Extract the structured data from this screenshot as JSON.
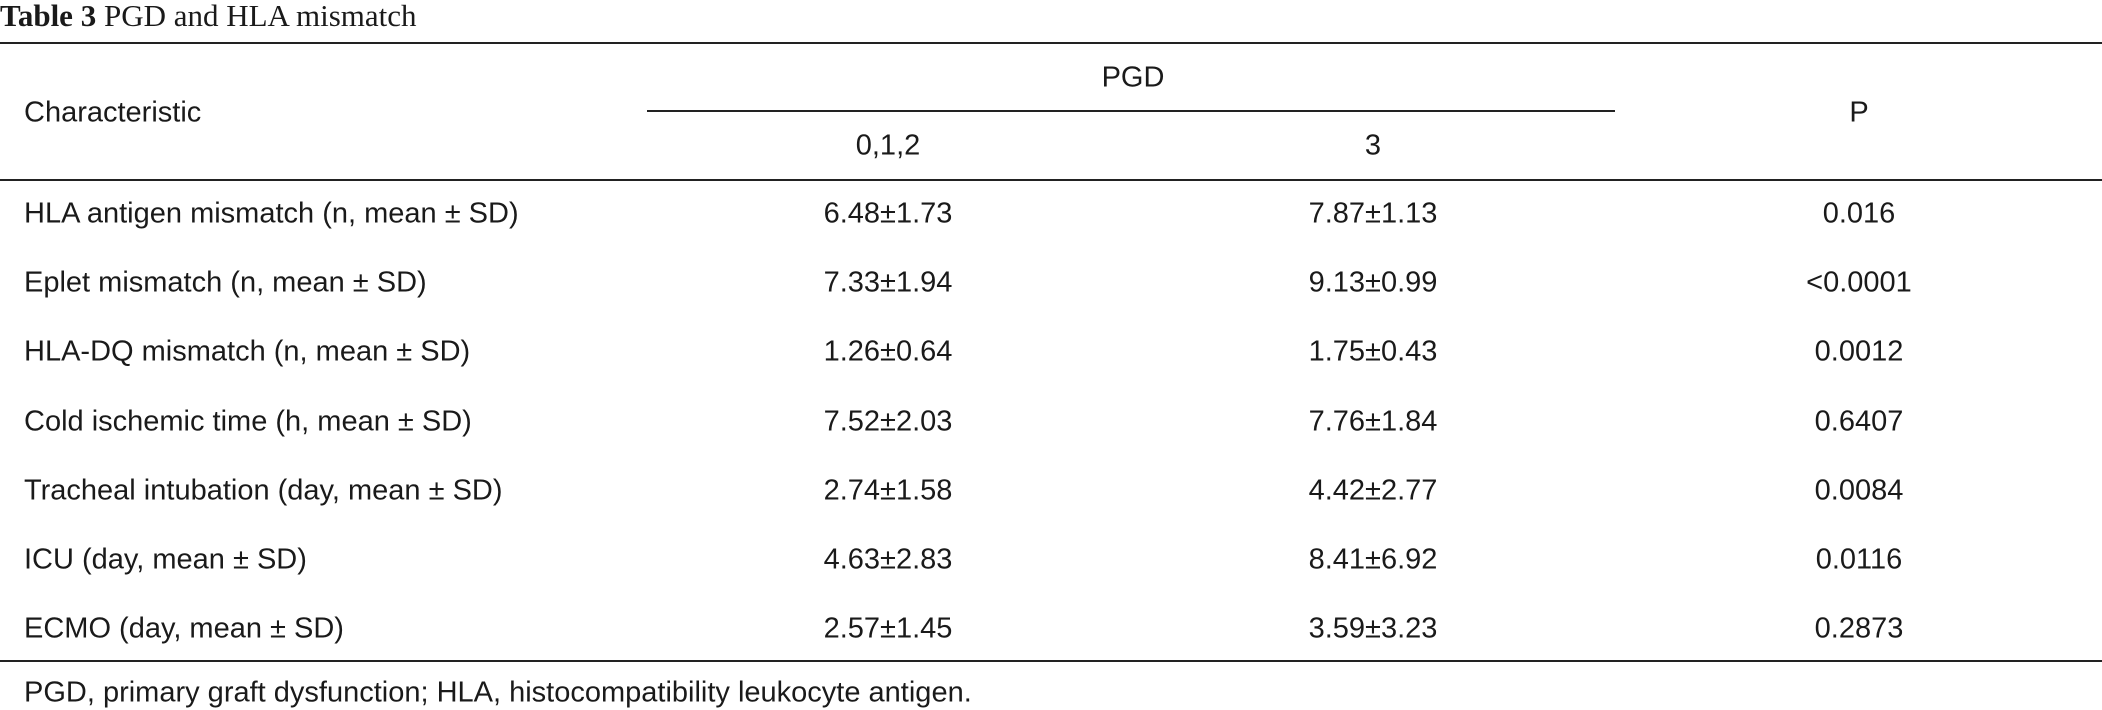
{
  "title": {
    "label": "Table 3",
    "text": "PGD and HLA mismatch"
  },
  "table": {
    "header": {
      "characteristic": "Characteristic",
      "group": "PGD",
      "subgroups": [
        "0,1,2",
        "3"
      ],
      "p": "P"
    },
    "rows": [
      [
        "HLA antigen mismatch (n, mean ± SD)",
        "6.48±1.73",
        "7.87±1.13",
        "0.016"
      ],
      [
        "Eplet mismatch (n, mean ± SD)",
        "7.33±1.94",
        "9.13±0.99",
        "<0.0001"
      ],
      [
        "HLA-DQ mismatch (n, mean ± SD)",
        "1.26±0.64",
        "1.75±0.43",
        "0.0012"
      ],
      [
        "Cold ischemic time (h, mean ± SD)",
        "7.52±2.03",
        "7.76±1.84",
        "0.6407"
      ],
      [
        "Tracheal intubation (day, mean ± SD)",
        "2.74±1.58",
        "4.42±2.77",
        "0.0084"
      ],
      [
        "ICU (day, mean ± SD)",
        "4.63±2.83",
        "8.41±6.92",
        "0.0116"
      ],
      [
        "ECMO (day, mean ± SD)",
        "2.57±1.45",
        "3.59±3.23",
        "0.2873"
      ]
    ]
  },
  "footnote": "PGD, primary graft dysfunction; HLA, histocompatibility leukocyte antigen."
}
